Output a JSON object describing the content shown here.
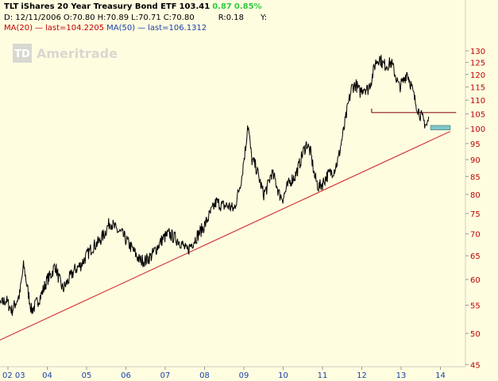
{
  "header": {
    "symbol": "TLT",
    "name": "iShares 20 Year Treasury Bond ETF",
    "last": "103.41",
    "change": "0.87",
    "change_pct": "0.85%",
    "date_label": "D: 12/11/2006",
    "open": "O:70.80",
    "high": "H:70.89",
    "low": "L:70.71",
    "close": "C:70.80",
    "r_label": "R:0.18",
    "y_label": "Y:",
    "ma20_label": "MA(20)",
    "ma20_last": "last=104.2205",
    "ma50_label": "MA(50)",
    "ma50_last": "last=106.1312"
  },
  "watermark": "Ameritrade",
  "colors": {
    "background": "#fffde0",
    "price": "#000000",
    "trendline": "#d23a3a",
    "support": "#8b1a1a",
    "target_box": "#7fc6c6",
    "y_tick": "#c00000",
    "x_tick": "#1a3fa8",
    "positive": "#2ecc40"
  },
  "chart_data": {
    "type": "line",
    "title": "TLT iShares 20 Year Treasury Bond ETF",
    "y_scale": "log",
    "ylim": [
      45,
      135
    ],
    "xlim": [
      2002.5,
      2014.4
    ],
    "y_ticks": [
      130,
      125,
      120,
      115,
      110,
      105,
      100,
      95,
      90,
      85,
      80,
      75,
      70,
      65,
      60,
      55,
      50,
      45
    ],
    "x_ticks": [
      {
        "label": "02 03",
        "t": 2003.0
      },
      {
        "label": "04",
        "t": 2004.0
      },
      {
        "label": "05",
        "t": 2005.0
      },
      {
        "label": "06",
        "t": 2006.0
      },
      {
        "label": "07",
        "t": 2007.0
      },
      {
        "label": "08",
        "t": 2008.0
      },
      {
        "label": "09",
        "t": 2009.0
      },
      {
        "label": "10",
        "t": 2010.0
      },
      {
        "label": "11",
        "t": 2011.0
      },
      {
        "label": "12",
        "t": 2012.0
      },
      {
        "label": "13",
        "t": 2013.0
      },
      {
        "label": "14",
        "t": 2014.0
      }
    ],
    "series": [
      {
        "t": [
          2002.5,
          2002.6,
          2002.7,
          2002.8,
          2002.95,
          2003.1,
          2003.3,
          2003.4,
          2003.5,
          2003.6,
          2003.7,
          2003.85,
          2004.0,
          2004.1,
          2004.2,
          2004.3,
          2004.4,
          2004.55,
          2004.7,
          2004.85,
          2005.0,
          2005.15,
          2005.3,
          2005.45,
          2005.6,
          2005.75,
          2005.9,
          2006.05,
          2006.2,
          2006.35,
          2006.5,
          2006.65,
          2006.8,
          2006.95,
          2007.1,
          2007.25,
          2007.4,
          2007.55,
          2007.7,
          2007.85,
          2008.0,
          2008.15,
          2008.3,
          2008.45,
          2008.6,
          2008.75,
          2008.85,
          2008.95,
          2009.0,
          2009.05,
          2009.1,
          2009.2,
          2009.3,
          2009.4,
          2009.5,
          2009.6,
          2009.7,
          2009.8,
          2009.9,
          2010.0,
          2010.1,
          2010.2,
          2010.3,
          2010.4,
          2010.5,
          2010.6,
          2010.7,
          2010.8,
          2010.9,
          2011.0,
          2011.1,
          2011.2,
          2011.3,
          2011.4,
          2011.55,
          2011.65,
          2011.75,
          2011.85,
          2011.95,
          2012.05,
          2012.15,
          2012.25,
          2012.35,
          2012.45,
          2012.55,
          2012.65,
          2012.75,
          2012.85,
          2012.95,
          2013.05,
          2013.15,
          2013.25,
          2013.35,
          2013.45,
          2013.55,
          2013.65,
          2013.7
        ],
        "y": [
          50,
          53,
          52,
          55,
          56,
          54,
          57,
          63,
          58,
          54,
          55,
          57,
          60,
          61,
          63,
          60,
          58,
          60,
          62,
          63,
          65,
          67,
          68,
          70,
          73,
          71,
          70,
          68,
          66,
          64,
          64,
          65,
          67,
          69,
          70,
          69,
          68,
          66,
          68,
          70,
          72,
          75,
          78,
          77,
          77,
          76,
          80,
          85,
          90,
          94,
          102,
          90,
          88,
          84,
          80,
          82,
          86,
          84,
          80,
          79,
          82,
          84,
          85,
          88,
          92,
          95,
          92,
          85,
          82,
          83,
          85,
          86,
          87,
          90,
          100,
          108,
          115,
          116,
          113,
          115,
          114,
          118,
          125,
          127,
          124,
          124,
          125,
          120,
          115,
          117,
          121,
          116,
          110,
          106,
          103,
          101,
          103
        ]
      }
    ],
    "trendline": {
      "t": [
        2002.5,
        2014.25
      ],
      "y": [
        48,
        99
      ]
    },
    "support_line": {
      "t": [
        2012.25,
        2014.4
      ],
      "y": [
        105.5,
        105.5
      ]
    },
    "target_zone": {
      "t": [
        2013.75,
        2014.25
      ],
      "y": [
        99.5,
        101
      ]
    }
  }
}
